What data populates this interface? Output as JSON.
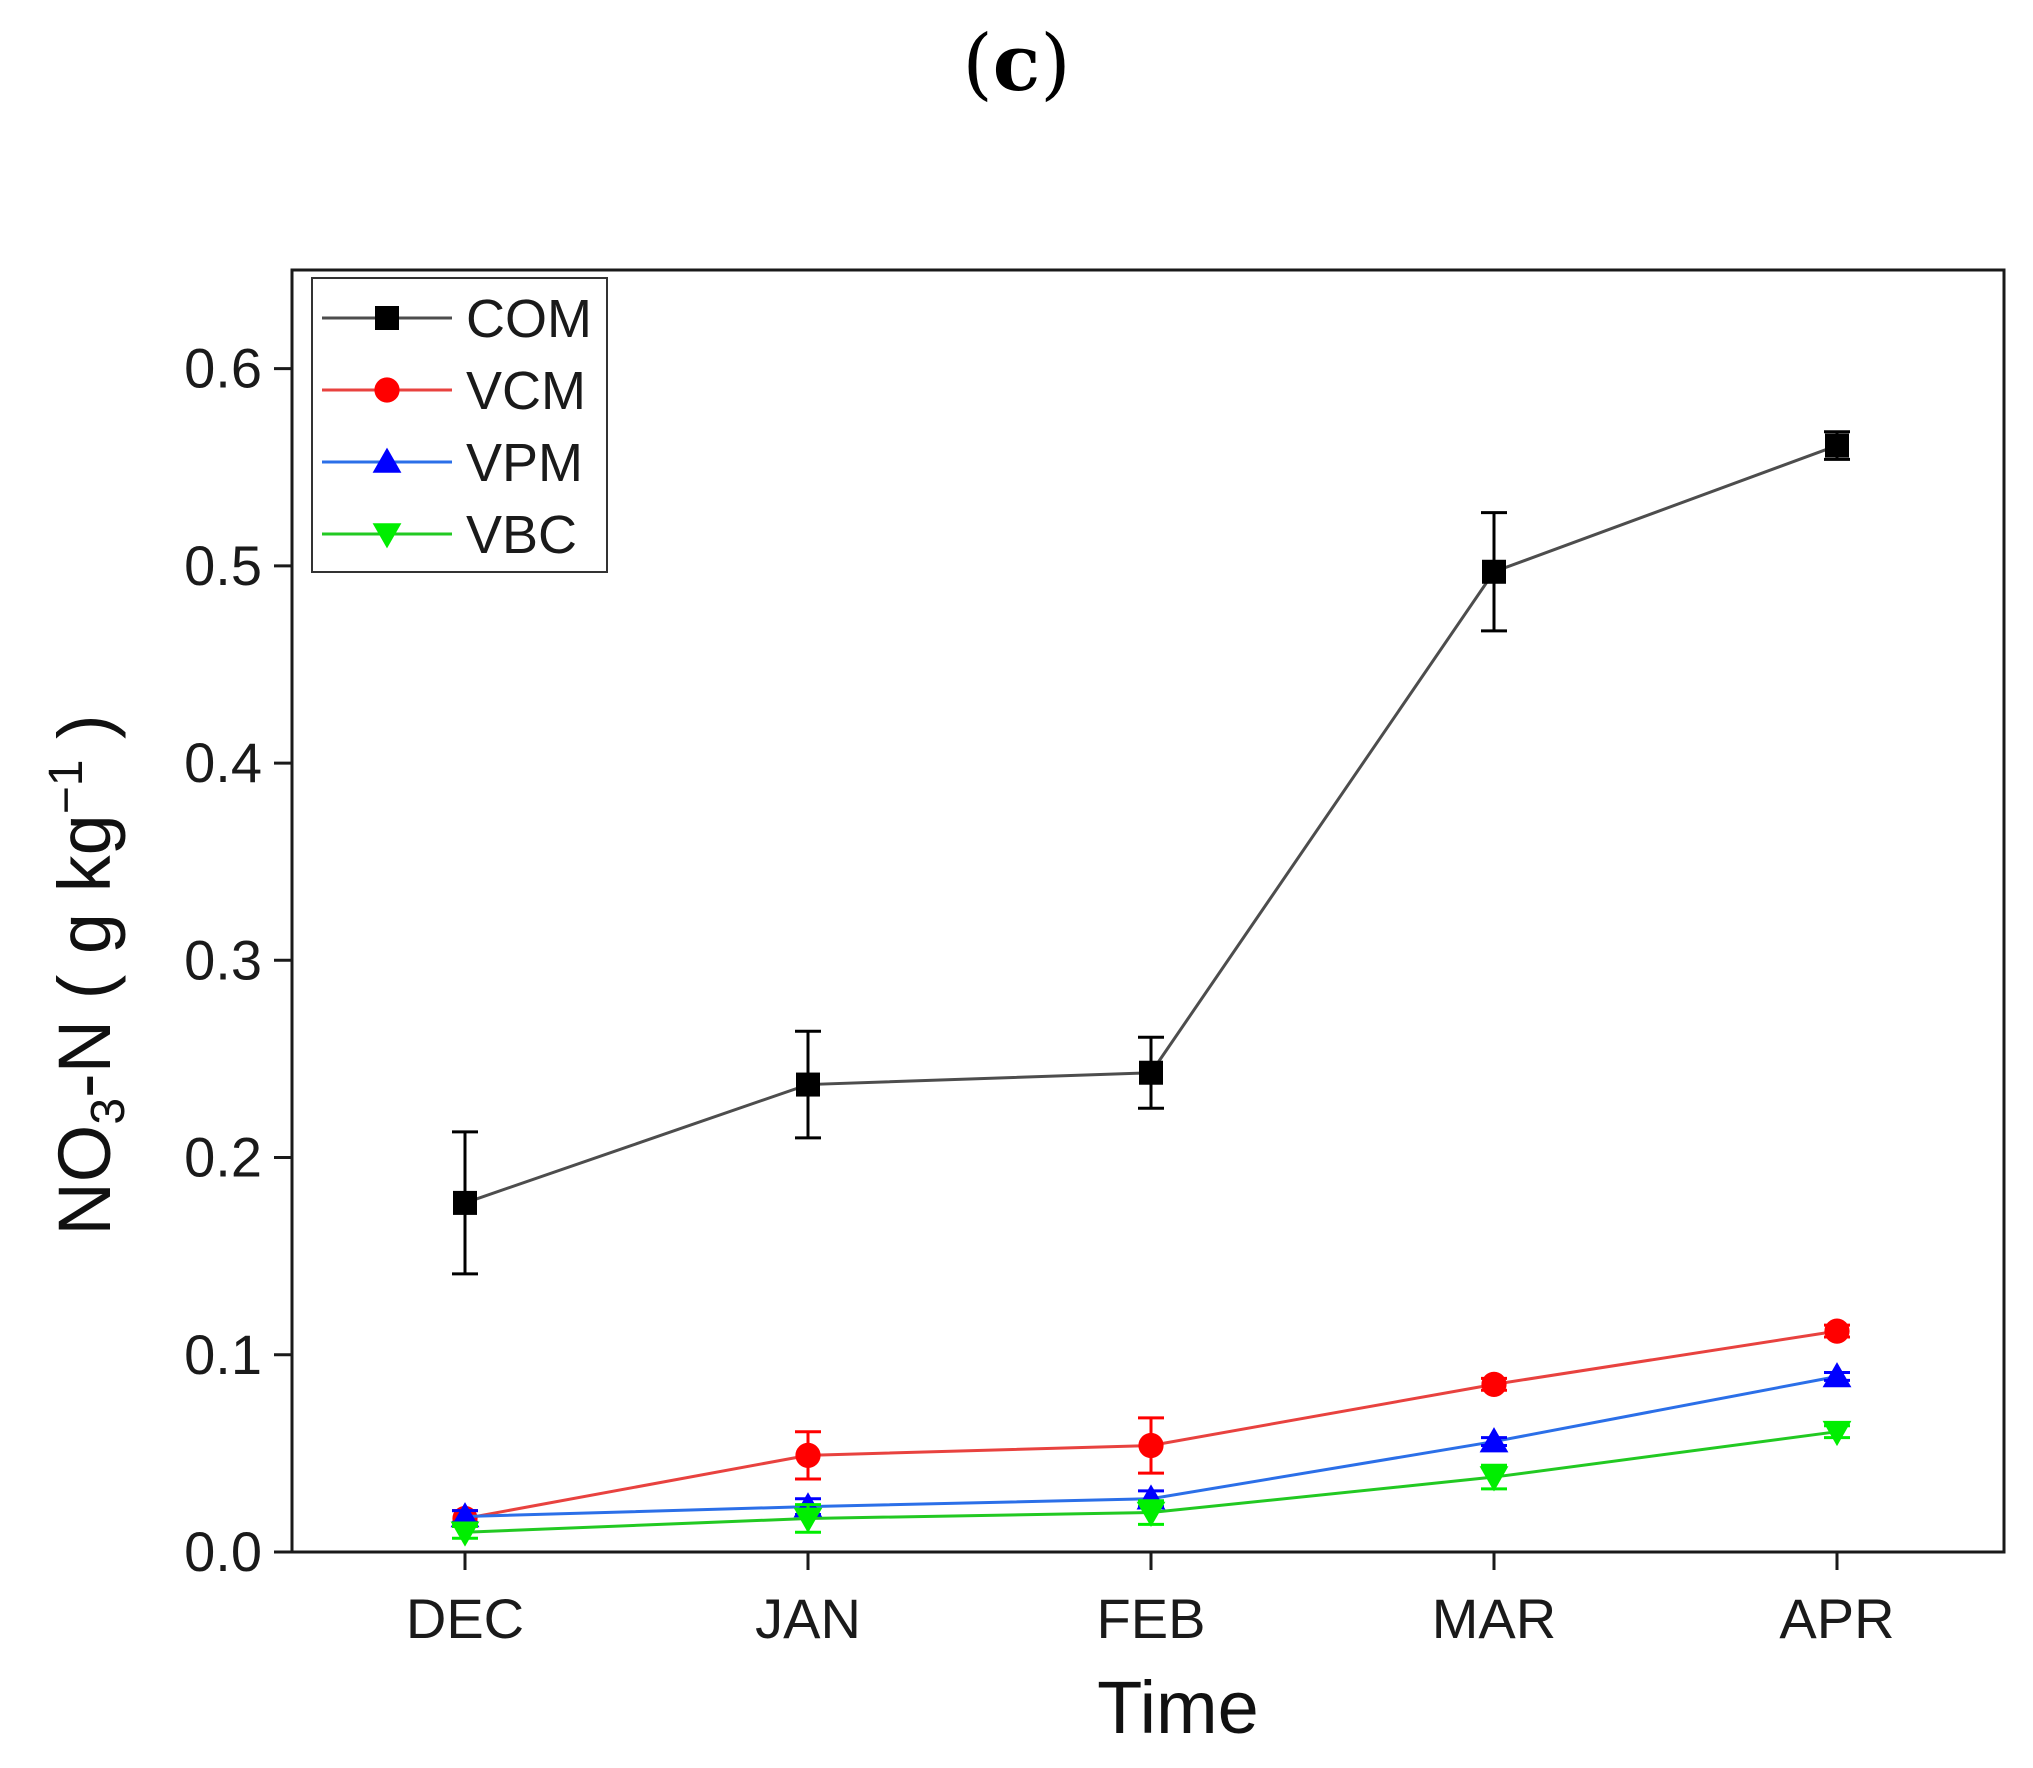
{
  "panel_label": {
    "open": "(",
    "letter": "c",
    "close": ")"
  },
  "chart_data": {
    "type": "line",
    "title": "(c)",
    "xlabel": "Time",
    "ylabel": {
      "prefix": "NO",
      "sub": "3",
      "middle": "-N ( g kg",
      "sup": "−1",
      "suffix": " )"
    },
    "categories": [
      "DEC",
      "JAN",
      "FEB",
      "MAR",
      "APR"
    ],
    "ylim": [
      0.0,
      0.65
    ],
    "yticks": [
      0.0,
      0.1,
      0.2,
      0.3,
      0.4,
      0.5,
      0.6
    ],
    "ytick_labels": [
      "0.0",
      "0.1",
      "0.2",
      "0.3",
      "0.4",
      "0.5",
      "0.6"
    ],
    "legend_position": "top-left",
    "grid": false,
    "series": [
      {
        "name": "COM",
        "color": "#4d4d4d",
        "marker": "square",
        "marker_color": "#000000",
        "values": [
          0.177,
          0.237,
          0.243,
          0.497,
          0.561
        ],
        "errors": [
          0.036,
          0.027,
          0.018,
          0.03,
          0.007
        ]
      },
      {
        "name": "VCM",
        "color": "#e8423f",
        "marker": "circle",
        "marker_color": "#ff0000",
        "values": [
          0.017,
          0.049,
          0.054,
          0.085,
          0.112
        ],
        "errors": [
          0.004,
          0.012,
          0.014,
          0.003,
          0.003
        ]
      },
      {
        "name": "VPM",
        "color": "#2b6fe8",
        "marker": "triangle-up",
        "marker_color": "#0000ff",
        "values": [
          0.018,
          0.023,
          0.027,
          0.056,
          0.089
        ],
        "errors": [
          0.003,
          0.004,
          0.004,
          0.002,
          0.002
        ]
      },
      {
        "name": "VBC",
        "color": "#22c922",
        "marker": "triangle-down",
        "marker_color": "#00ee00",
        "values": [
          0.01,
          0.017,
          0.02,
          0.038,
          0.061
        ],
        "errors": [
          0.003,
          0.007,
          0.006,
          0.006,
          0.003
        ]
      }
    ]
  }
}
